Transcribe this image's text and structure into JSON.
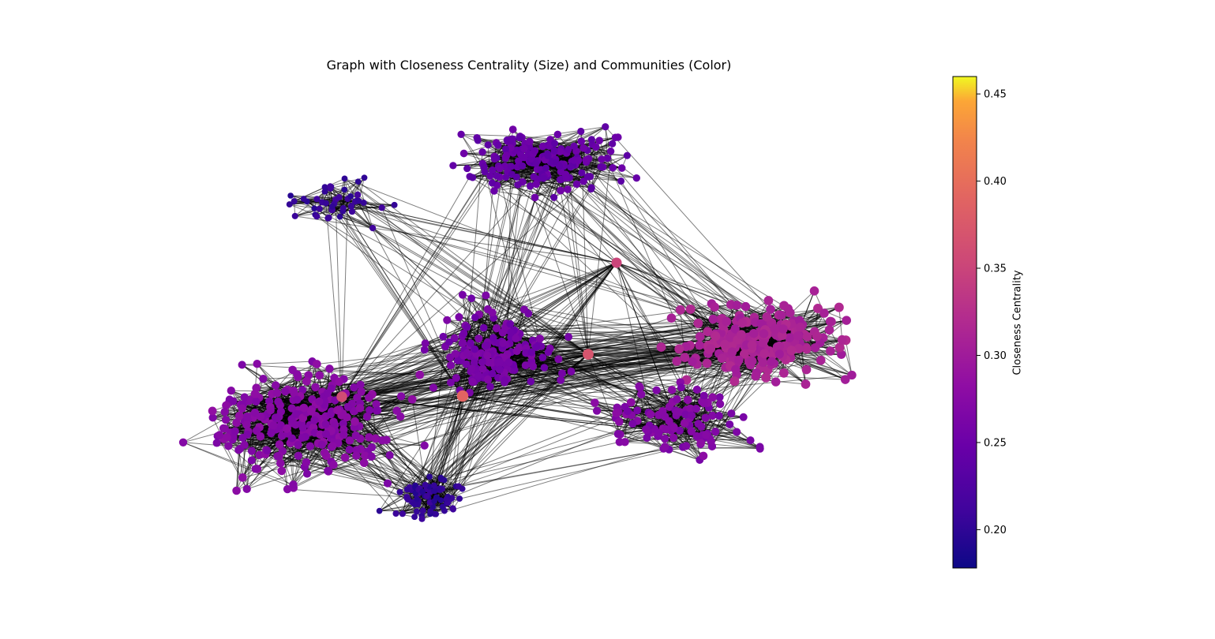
{
  "chart_data": {
    "type": "network",
    "title": "Graph with Closeness Centrality (Size) and Communities (Color)",
    "colorbar": {
      "label": "Closeness Centrality",
      "range": [
        0.178,
        0.46
      ],
      "ticks": [
        "0.20",
        "0.25",
        "0.30",
        "0.35",
        "0.40",
        "0.45"
      ],
      "tick_values": [
        0.2,
        0.25,
        0.3,
        0.35,
        0.4,
        0.45
      ],
      "colormap": "plasma"
    },
    "communities": [
      {
        "name": "top",
        "closeness": 0.245,
        "color": "#7a0aa3"
      },
      {
        "name": "upper-left",
        "closeness": 0.205,
        "color": "#2c0594"
      },
      {
        "name": "center",
        "closeness": 0.26,
        "color": "#8e0fa5"
      },
      {
        "name": "right",
        "closeness": 0.31,
        "color": "#c7427c"
      },
      {
        "name": "left",
        "closeness": 0.275,
        "color": "#a22398"
      },
      {
        "name": "lower-center",
        "closeness": 0.2,
        "color": "#180690"
      },
      {
        "name": "lower-right",
        "closeness": 0.27,
        "color": "#9d1c9c"
      }
    ],
    "hubs": [
      {
        "closeness": 0.35
      },
      {
        "closeness": 0.39
      },
      {
        "closeness": 0.37
      },
      {
        "closeness": 0.36
      }
    ],
    "axis": "off"
  }
}
